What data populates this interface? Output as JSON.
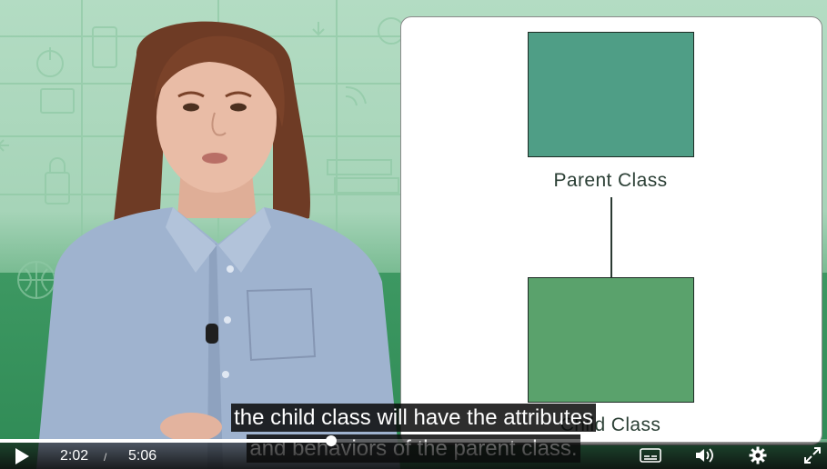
{
  "player": {
    "current_time": "2:02",
    "time_separator": "/",
    "total_time": "5:06",
    "progress_fraction": 0.4,
    "accent_color": "#ffffff"
  },
  "captions": {
    "line1": "the child class will have the attributes",
    "line2": "and behaviors of the parent class."
  },
  "slide": {
    "parent_label": "Parent Class",
    "child_label": "Child Class"
  },
  "icons": {
    "play": "play-icon",
    "captions": "closed-captions-icon",
    "volume": "volume-icon",
    "settings": "gear-icon",
    "fullscreen": "fullscreen-icon"
  },
  "colors": {
    "parent_box": "#4f9e86",
    "child_box": "#5aa26c",
    "background_green": "#3d9862"
  }
}
